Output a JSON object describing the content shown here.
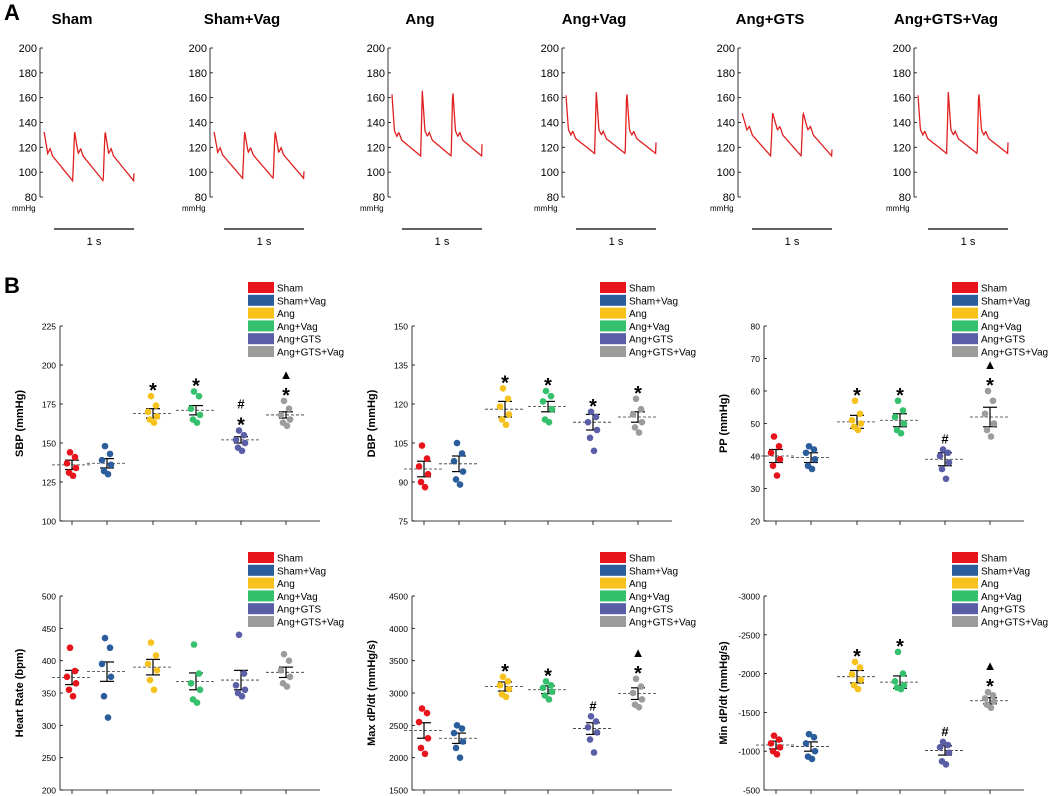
{
  "panel_labels": {
    "a": "A",
    "b": "B"
  },
  "colors": {
    "Sham": "#e8141c",
    "Sham+Vag": "#2b5c9c",
    "Ang": "#f8c21c",
    "Ang+Vag": "#34c06c",
    "Ang+GTS": "#5a5ea6",
    "Ang+GTS+Vag": "#9c9c9c",
    "trace": "#e02020"
  },
  "legend": [
    "Sham",
    "Sham+Vag",
    "Ang",
    "Ang+Vag",
    "Ang+GTS",
    "Ang+GTS+Vag"
  ],
  "trace_ylabel": "mmHg",
  "scalebar_label": "1 s",
  "chart_data": [
    {
      "type": "line",
      "panel": "A",
      "title": "Sham",
      "ylim": [
        80,
        200
      ],
      "yticks": [
        "200",
        "180",
        "160",
        "140",
        "120",
        "100",
        "80"
      ],
      "peak": 133,
      "trough": 93,
      "pattern": "control"
    },
    {
      "type": "line",
      "panel": "A",
      "title": "Sham+Vag",
      "ylim": [
        80,
        200
      ],
      "yticks": [
        "200",
        "180",
        "160",
        "140",
        "120",
        "100",
        "80"
      ],
      "peak": 133,
      "trough": 95,
      "pattern": "control"
    },
    {
      "type": "line",
      "panel": "A",
      "title": "Ang",
      "ylim": [
        80,
        200
      ],
      "yticks": [
        "200",
        "180",
        "160",
        "140",
        "120",
        "100",
        "80"
      ],
      "peak": 166,
      "trough": 113,
      "pattern": "hyper"
    },
    {
      "type": "line",
      "panel": "A",
      "title": "Ang+Vag",
      "ylim": [
        80,
        200
      ],
      "yticks": [
        "200",
        "180",
        "160",
        "140",
        "120",
        "100",
        "80"
      ],
      "peak": 165,
      "trough": 115,
      "pattern": "hyper"
    },
    {
      "type": "line",
      "panel": "A",
      "title": "Ang+GTS",
      "ylim": [
        80,
        200
      ],
      "yticks": [
        "200",
        "180",
        "160",
        "140",
        "120",
        "100",
        "80"
      ],
      "peak": 148,
      "trough": 113,
      "pattern": "gts"
    },
    {
      "type": "line",
      "panel": "A",
      "title": "Ang+GTS+Vag",
      "ylim": [
        80,
        200
      ],
      "yticks": [
        "200",
        "180",
        "160",
        "140",
        "120",
        "100",
        "80"
      ],
      "peak": 165,
      "trough": 115,
      "pattern": "hyper"
    },
    {
      "type": "scatter",
      "panel": "B",
      "ylabel": "SBP (mmHg)",
      "ylim": [
        100,
        225
      ],
      "yticks": [
        "100",
        "125",
        "150",
        "175",
        "200",
        "225"
      ],
      "groups": [
        {
          "name": "Sham",
          "mean": 136,
          "sem": 3,
          "points": [
            144,
            141,
            137,
            134,
            131,
            129
          ],
          "marks": []
        },
        {
          "name": "Sham+Vag",
          "mean": 137,
          "sem": 3,
          "points": [
            148,
            143,
            139,
            136,
            132,
            130
          ],
          "marks": []
        },
        {
          "name": "Ang",
          "mean": 169,
          "sem": 3,
          "points": [
            180,
            174,
            170,
            167,
            165,
            163
          ],
          "marks": [
            "*"
          ]
        },
        {
          "name": "Ang+Vag",
          "mean": 171,
          "sem": 3,
          "points": [
            183,
            180,
            172,
            168,
            165,
            163
          ],
          "marks": [
            "*"
          ]
        },
        {
          "name": "Ang+GTS",
          "mean": 152,
          "sem": 2,
          "points": [
            158,
            155,
            152,
            150,
            147,
            145
          ],
          "marks": [
            "*",
            "#"
          ]
        },
        {
          "name": "Ang+GTS+Vag",
          "mean": 168,
          "sem": 2,
          "points": [
            177,
            172,
            168,
            165,
            163,
            161
          ],
          "marks": [
            "*",
            "▲"
          ]
        }
      ]
    },
    {
      "type": "scatter",
      "panel": "B",
      "ylabel": "DBP (mmHg)",
      "ylim": [
        75,
        150
      ],
      "yticks": [
        "75",
        "90",
        "105",
        "120",
        "135",
        "150"
      ],
      "groups": [
        {
          "name": "Sham",
          "mean": 95,
          "sem": 3,
          "points": [
            104,
            99,
            96,
            93,
            90,
            88
          ],
          "marks": []
        },
        {
          "name": "Sham+Vag",
          "mean": 97,
          "sem": 3,
          "points": [
            105,
            101,
            98,
            94,
            91,
            89
          ],
          "marks": []
        },
        {
          "name": "Ang",
          "mean": 118,
          "sem": 3,
          "points": [
            126,
            122,
            119,
            116,
            114,
            112
          ],
          "marks": [
            "*"
          ]
        },
        {
          "name": "Ang+Vag",
          "mean": 119,
          "sem": 2,
          "points": [
            125,
            123,
            121,
            118,
            114,
            113
          ],
          "marks": [
            "*"
          ]
        },
        {
          "name": "Ang+GTS",
          "mean": 113,
          "sem": 3,
          "points": [
            117,
            115,
            113,
            110,
            107,
            102
          ],
          "marks": [
            "*"
          ]
        },
        {
          "name": "Ang+GTS+Vag",
          "mean": 115,
          "sem": 2,
          "points": [
            122,
            118,
            116,
            113,
            111,
            109
          ],
          "marks": [
            "*"
          ]
        }
      ]
    },
    {
      "type": "scatter",
      "panel": "B",
      "ylabel": "PP (mmHg)",
      "ylim": [
        20,
        80
      ],
      "yticks": [
        "20",
        "30",
        "40",
        "50",
        "60",
        "70",
        "80"
      ],
      "groups": [
        {
          "name": "Sham",
          "mean": 40,
          "sem": 2,
          "points": [
            46,
            43,
            41,
            39,
            37,
            34
          ],
          "marks": []
        },
        {
          "name": "Sham+Vag",
          "mean": 39.5,
          "sem": 1.5,
          "points": [
            43,
            42,
            41,
            39,
            37,
            36
          ],
          "marks": []
        },
        {
          "name": "Ang",
          "mean": 50.5,
          "sem": 2,
          "points": [
            57,
            53,
            51,
            50,
            49,
            48
          ],
          "marks": [
            "*"
          ]
        },
        {
          "name": "Ang+Vag",
          "mean": 51,
          "sem": 2,
          "points": [
            57,
            54,
            52,
            50,
            48,
            47
          ],
          "marks": [
            "*"
          ]
        },
        {
          "name": "Ang+GTS",
          "mean": 39,
          "sem": 2,
          "points": [
            42,
            41,
            40,
            38,
            36,
            33
          ],
          "marks": [
            "#"
          ]
        },
        {
          "name": "Ang+GTS+Vag",
          "mean": 52,
          "sem": 3,
          "points": [
            60,
            57,
            53,
            50,
            48,
            46
          ],
          "marks": [
            "*",
            "▲"
          ]
        }
      ]
    },
    {
      "type": "scatter",
      "panel": "B",
      "ylabel": "Heart Rate (bpm)",
      "ylim": [
        200,
        500
      ],
      "yticks": [
        "200",
        "250",
        "300",
        "350",
        "400",
        "450",
        "500"
      ],
      "groups": [
        {
          "name": "Sham",
          "mean": 374,
          "sem": 11,
          "points": [
            420,
            384,
            375,
            365,
            355,
            345
          ],
          "marks": []
        },
        {
          "name": "Sham+Vag",
          "mean": 383,
          "sem": 15,
          "points": [
            435,
            420,
            395,
            375,
            345,
            312
          ],
          "marks": []
        },
        {
          "name": "Ang",
          "mean": 390,
          "sem": 12,
          "points": [
            428,
            408,
            395,
            385,
            370,
            355
          ],
          "marks": []
        },
        {
          "name": "Ang+Vag",
          "mean": 368,
          "sem": 13,
          "points": [
            425,
            380,
            365,
            355,
            340,
            335
          ],
          "marks": []
        },
        {
          "name": "Ang+GTS",
          "mean": 370,
          "sem": 15,
          "points": [
            440,
            380,
            362,
            355,
            350,
            345
          ],
          "marks": []
        },
        {
          "name": "Ang+GTS+Vag",
          "mean": 382,
          "sem": 8,
          "points": [
            410,
            400,
            385,
            375,
            365,
            360
          ],
          "marks": []
        }
      ]
    },
    {
      "type": "scatter",
      "panel": "B",
      "ylabel": "Max dP/dt (mmHg/s)",
      "ylim": [
        1500,
        4500
      ],
      "yticks": [
        "1500",
        "2000",
        "2500",
        "3000",
        "3500",
        "4000",
        "4500"
      ],
      "groups": [
        {
          "name": "Sham",
          "mean": 2420,
          "sem": 120,
          "points": [
            2760,
            2690,
            2550,
            2300,
            2150,
            2060
          ],
          "marks": []
        },
        {
          "name": "Sham+Vag",
          "mean": 2300,
          "sem": 80,
          "points": [
            2500,
            2450,
            2380,
            2250,
            2150,
            2000
          ],
          "marks": []
        },
        {
          "name": "Ang",
          "mean": 3100,
          "sem": 70,
          "points": [
            3250,
            3180,
            3120,
            3060,
            2980,
            2940
          ],
          "marks": [
            "*"
          ]
        },
        {
          "name": "Ang+Vag",
          "mean": 3050,
          "sem": 60,
          "points": [
            3180,
            3120,
            3080,
            3020,
            2960,
            2900
          ],
          "marks": [
            "*"
          ]
        },
        {
          "name": "Ang+GTS",
          "mean": 2450,
          "sem": 90,
          "points": [
            2640,
            2560,
            2470,
            2390,
            2280,
            2080
          ],
          "marks": [
            "#"
          ]
        },
        {
          "name": "Ang+GTS+Vag",
          "mean": 2990,
          "sem": 90,
          "points": [
            3220,
            3100,
            3000,
            2900,
            2820,
            2780
          ],
          "marks": [
            "*",
            "▲"
          ]
        }
      ]
    },
    {
      "type": "scatter",
      "panel": "B",
      "ylabel": "Min dP/dt (mmHg/s)",
      "ylim": [
        -500,
        -3000
      ],
      "yticks": [
        "-500",
        "-1000",
        "-1500",
        "-2000",
        "-2500",
        "-3000"
      ],
      "groups": [
        {
          "name": "Sham",
          "mean": -1080,
          "sem": 50,
          "points": [
            -1200,
            -1150,
            -1100,
            -1050,
            -1000,
            -960
          ],
          "marks": []
        },
        {
          "name": "Sham+Vag",
          "mean": -1060,
          "sem": 60,
          "points": [
            -1220,
            -1180,
            -1100,
            -1000,
            -930,
            -900
          ],
          "marks": []
        },
        {
          "name": "Ang",
          "mean": -1960,
          "sem": 80,
          "points": [
            -2150,
            -2080,
            -1990,
            -1920,
            -1850,
            -1800
          ],
          "marks": [
            "*"
          ]
        },
        {
          "name": "Ang+Vag",
          "mean": -1890,
          "sem": 80,
          "points": [
            -2280,
            -2000,
            -1900,
            -1850,
            -1820,
            -1800
          ],
          "marks": [
            "*"
          ]
        },
        {
          "name": "Ang+GTS",
          "mean": -1010,
          "sem": 60,
          "points": [
            -1120,
            -1080,
            -1050,
            -980,
            -870,
            -830
          ],
          "marks": [
            "#"
          ]
        },
        {
          "name": "Ang+GTS+Vag",
          "mean": -1650,
          "sem": 40,
          "points": [
            -1760,
            -1720,
            -1680,
            -1640,
            -1600,
            -1560
          ],
          "marks": [
            "*",
            "▲"
          ]
        }
      ]
    }
  ]
}
